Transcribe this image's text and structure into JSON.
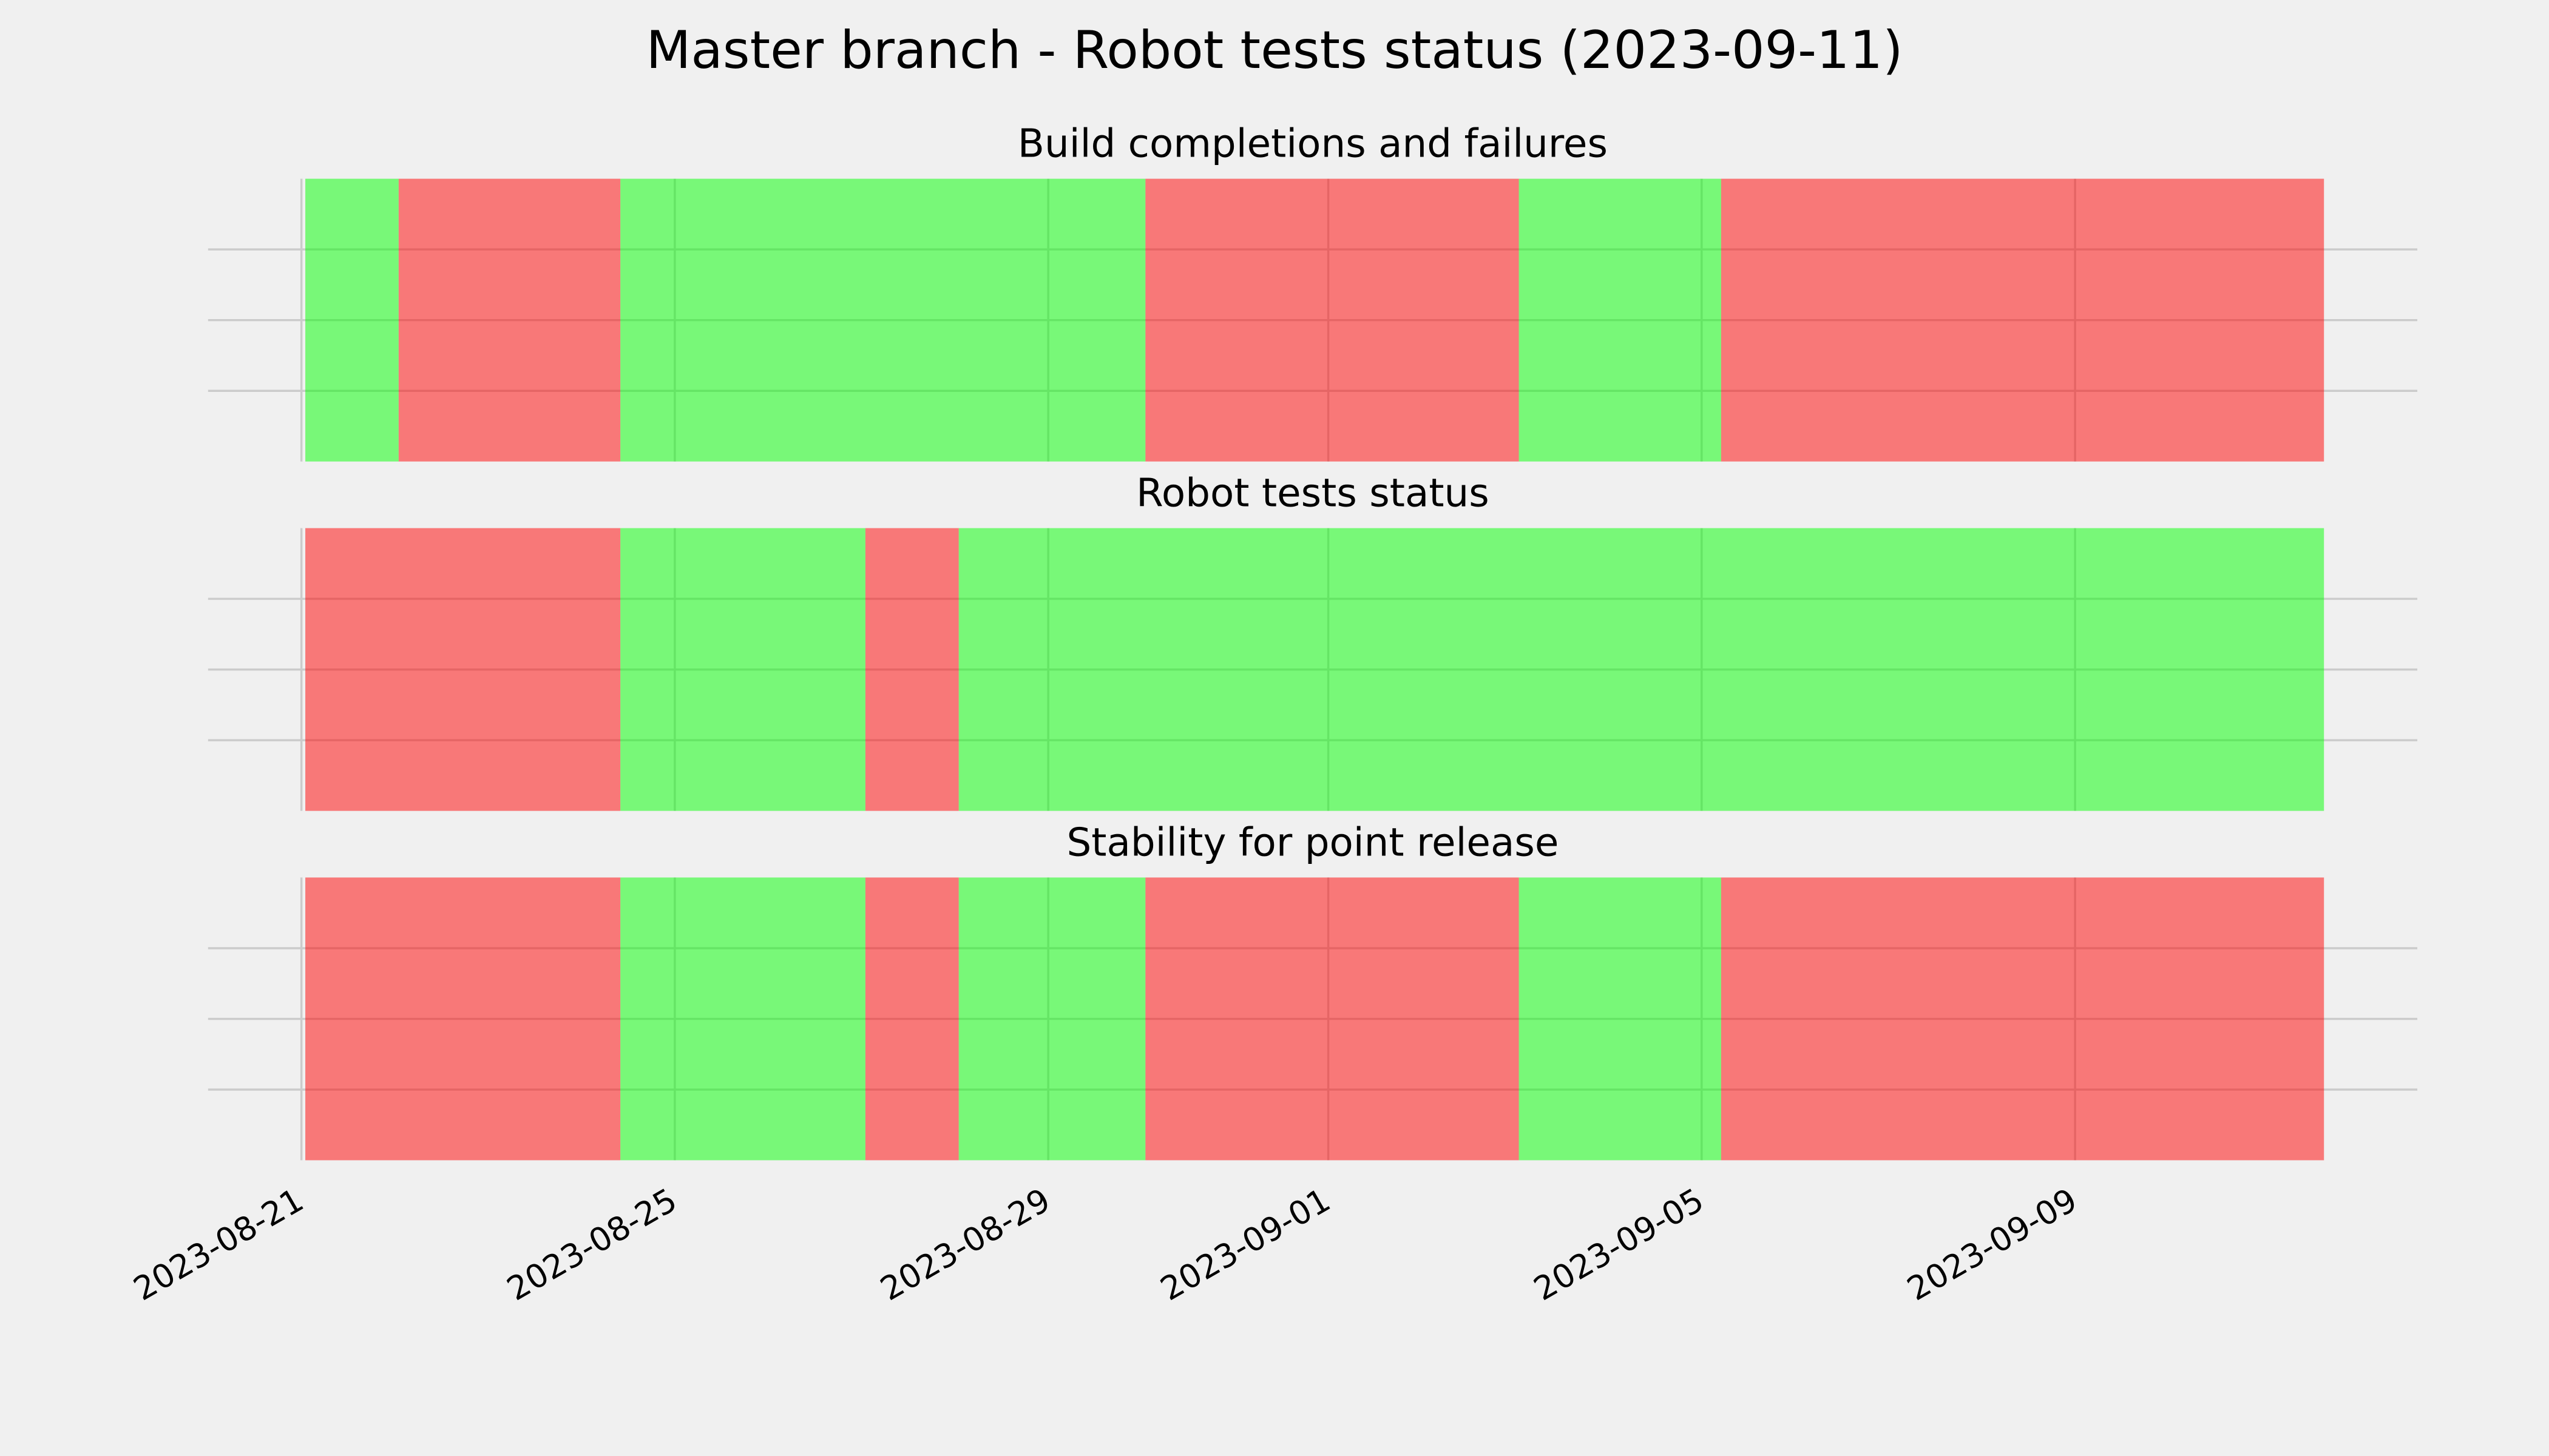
{
  "chart_data": {
    "type": "timeline",
    "title": "Master branch - Robot tests status (2023-09-11)",
    "xlim": [
      "2023-08-20T00:00",
      "2023-09-12T16:00"
    ],
    "xticks": [
      "2023-08-21",
      "2023-08-25",
      "2023-08-29",
      "2023-09-01",
      "2023-09-05",
      "2023-09-09"
    ],
    "ylim": [
      0,
      1
    ],
    "yticks": [
      0.25,
      0.5,
      0.75
    ],
    "grid": true,
    "panels": [
      {
        "title": "Build completions and failures",
        "spans": [
          {
            "start": "2023-08-21T01:00",
            "end": "2023-08-22T01:00",
            "color": "#00ff00"
          },
          {
            "start": "2023-08-22T01:00",
            "end": "2023-08-24T10:00",
            "color": "#ff0000"
          },
          {
            "start": "2023-08-24T10:00",
            "end": "2023-08-30T01:00",
            "color": "#00ff00"
          },
          {
            "start": "2023-08-30T01:00",
            "end": "2023-09-03T01:00",
            "color": "#ff0000"
          },
          {
            "start": "2023-09-03T01:00",
            "end": "2023-09-05T05:00",
            "color": "#00ff00"
          },
          {
            "start": "2023-09-05T05:00",
            "end": "2023-09-11T16:00",
            "color": "#ff0000"
          }
        ]
      },
      {
        "title": "Robot tests status",
        "spans": [
          {
            "start": "2023-08-21T01:00",
            "end": "2023-08-24T10:00",
            "color": "#ff0000"
          },
          {
            "start": "2023-08-24T10:00",
            "end": "2023-08-27T01:00",
            "color": "#00ff00"
          },
          {
            "start": "2023-08-27T01:00",
            "end": "2023-08-28T01:00",
            "color": "#ff0000"
          },
          {
            "start": "2023-08-28T01:00",
            "end": "2023-09-11T16:00",
            "color": "#00ff00"
          }
        ]
      },
      {
        "title": "Stability for point release",
        "spans": [
          {
            "start": "2023-08-21T01:00",
            "end": "2023-08-24T10:00",
            "color": "#ff0000"
          },
          {
            "start": "2023-08-24T10:00",
            "end": "2023-08-27T01:00",
            "color": "#00ff00"
          },
          {
            "start": "2023-08-27T01:00",
            "end": "2023-08-28T01:00",
            "color": "#ff0000"
          },
          {
            "start": "2023-08-28T01:00",
            "end": "2023-08-30T01:00",
            "color": "#00ff00"
          },
          {
            "start": "2023-08-30T01:00",
            "end": "2023-09-03T01:00",
            "color": "#ff0000"
          },
          {
            "start": "2023-09-03T01:00",
            "end": "2023-09-05T05:00",
            "color": "#00ff00"
          },
          {
            "start": "2023-09-05T05:00",
            "end": "2023-09-11T16:00",
            "color": "#ff0000"
          }
        ]
      }
    ]
  }
}
